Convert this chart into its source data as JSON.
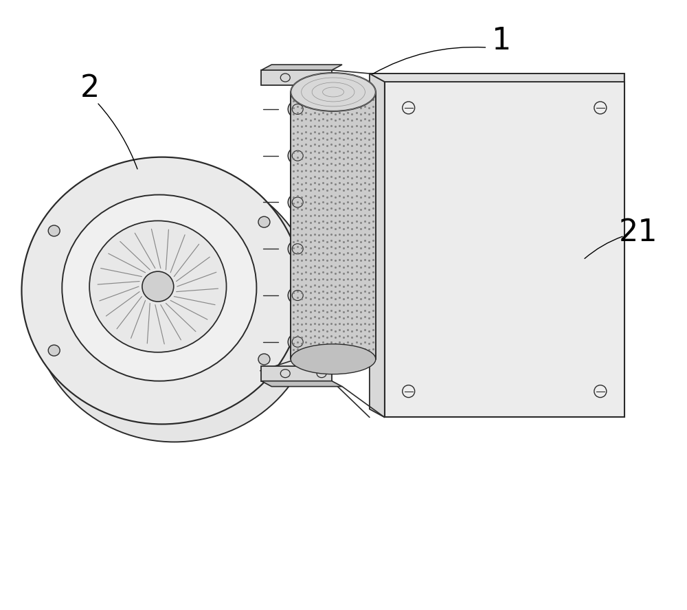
{
  "background_color": "#ffffff",
  "line_color": "#4a4a4a",
  "dark_line": "#2a2a2a",
  "fill_light": "#eeeeee",
  "fill_medium": "#d8d8d8",
  "fill_dark": "#c0c0c0",
  "fill_panel": "#e8e8e8",
  "mesh_dot_color": "#888888",
  "label_1": "1",
  "label_2": "2",
  "label_21": "21",
  "label_fontsize": 32,
  "figsize": [
    10.0,
    8.88
  ]
}
